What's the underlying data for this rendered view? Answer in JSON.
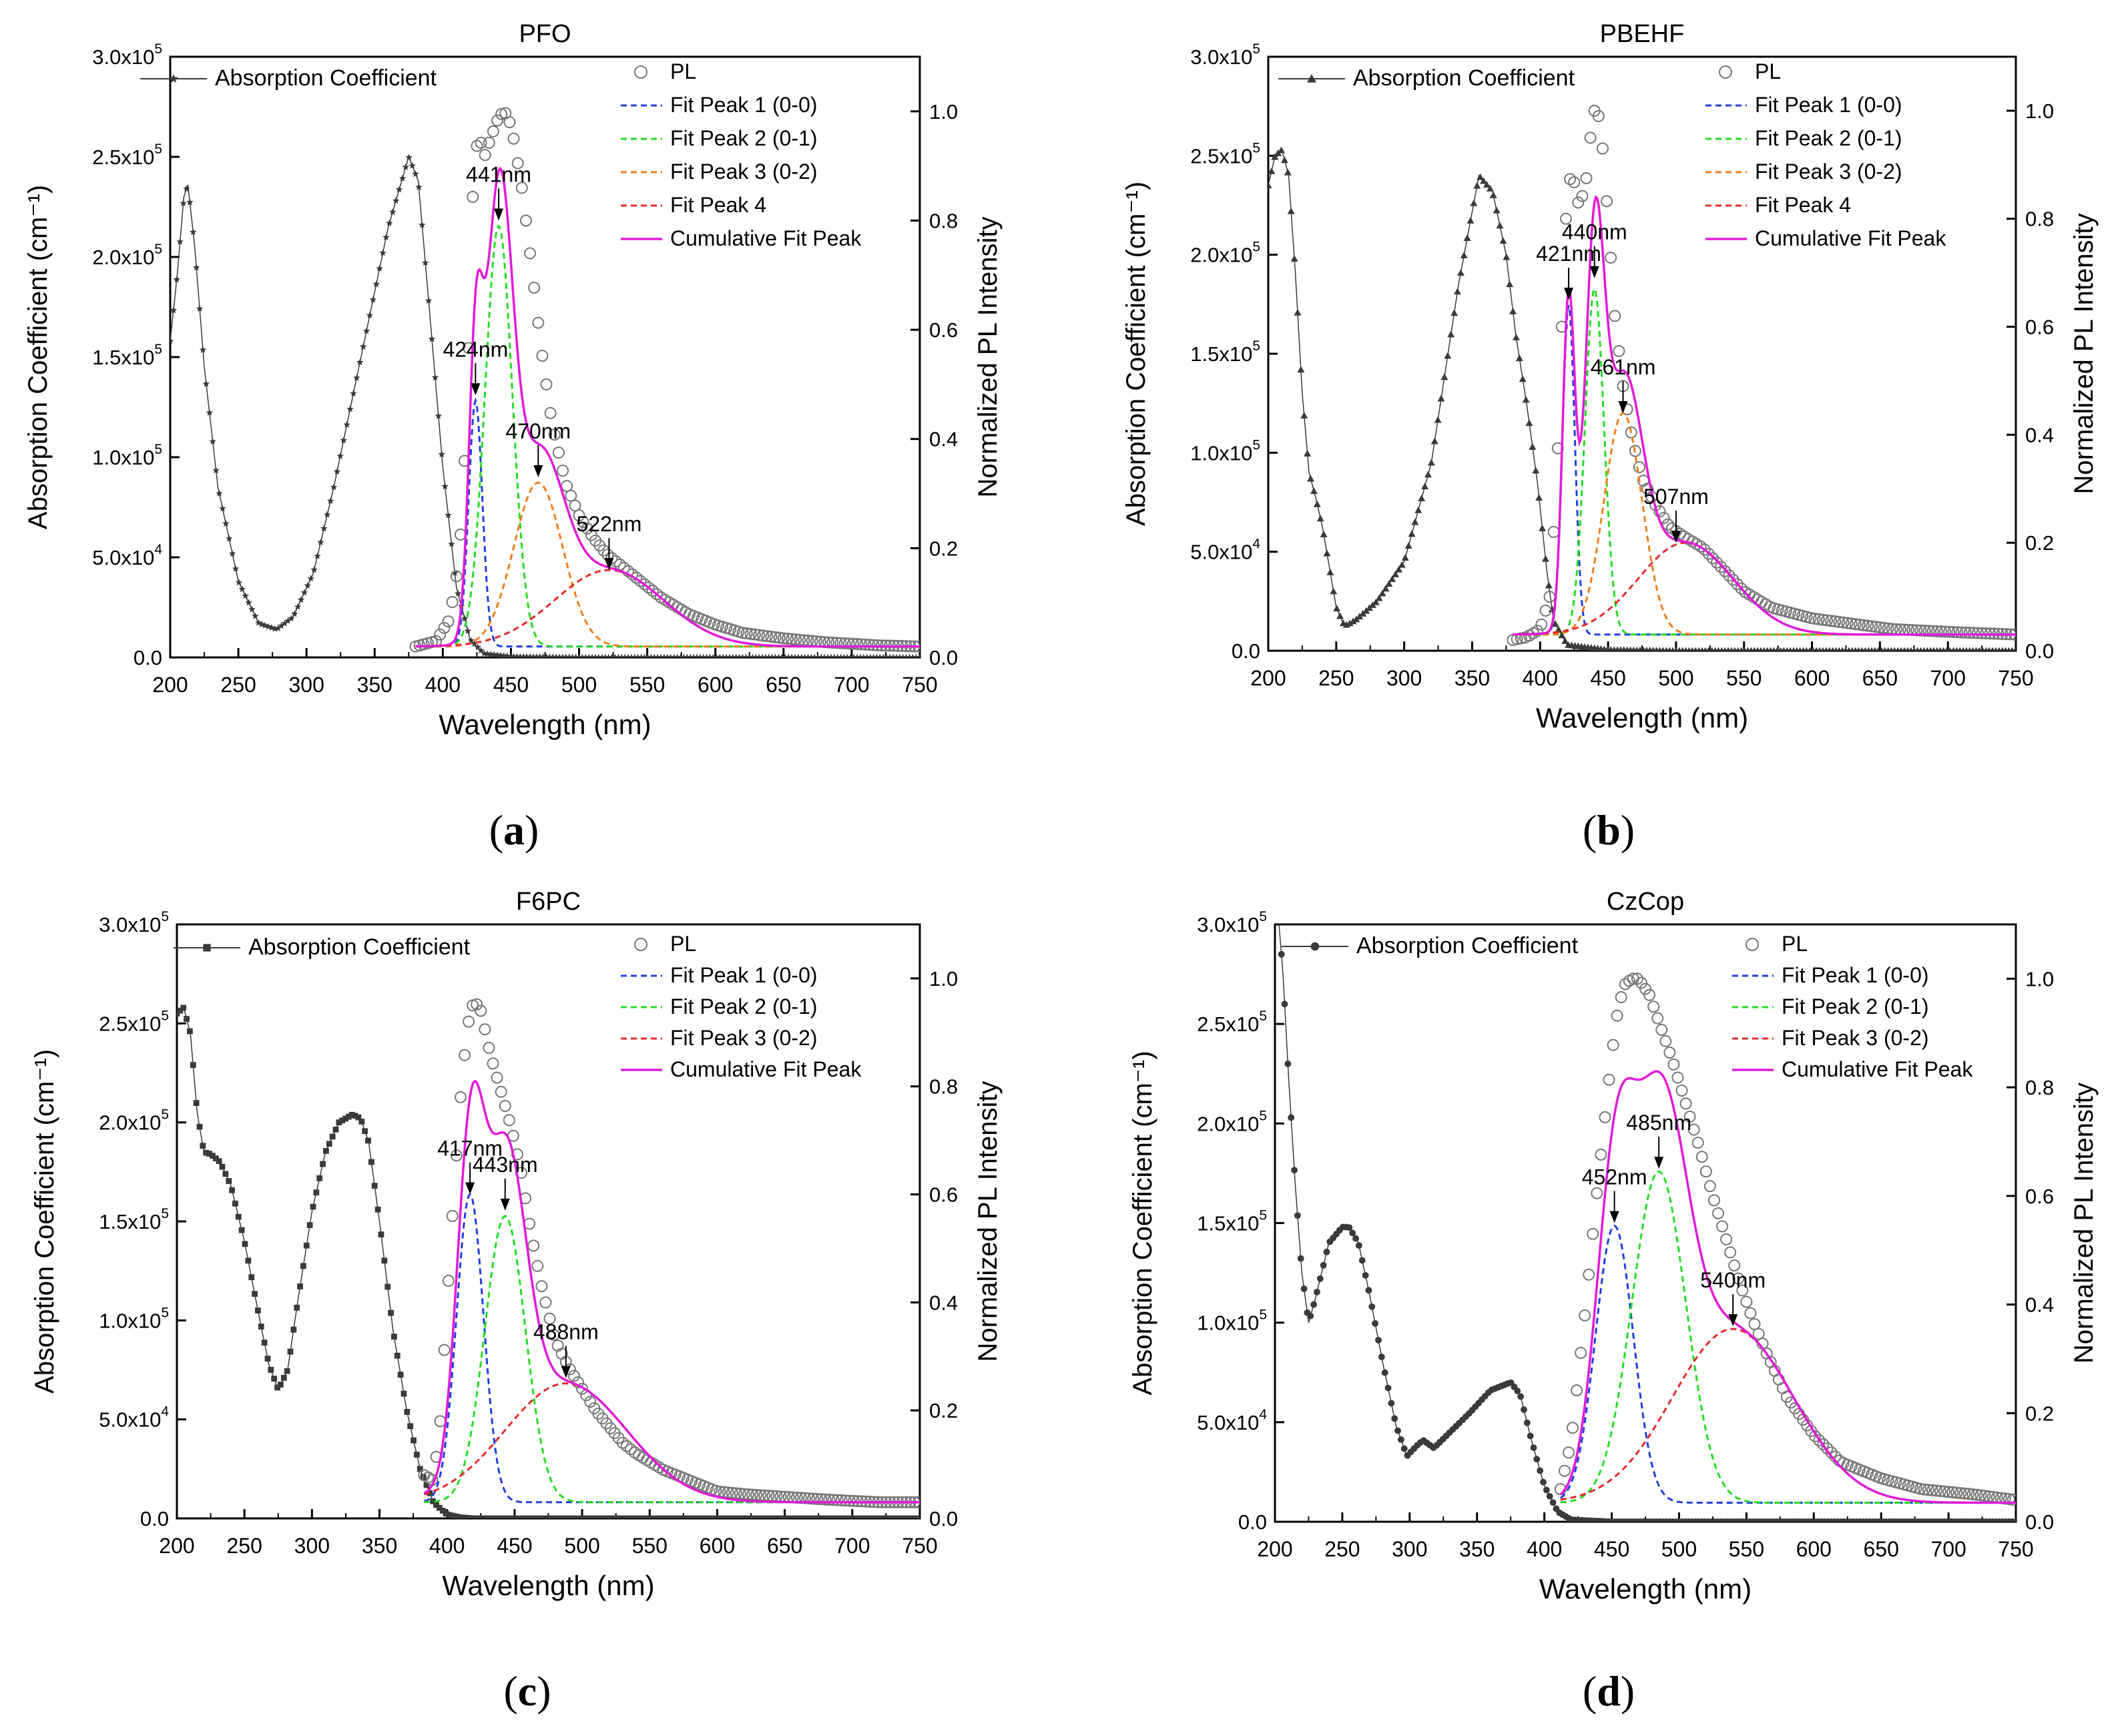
{
  "colors": {
    "absorption": "#3a3a3a",
    "pl_marker": "#777777",
    "fit_blue": "#1f3fe0",
    "fit_green": "#22dd22",
    "fit_orange": "#f07f1a",
    "fit_red": "#e52a2a",
    "cumulative": "#e21ad8",
    "annotation": "#000000"
  },
  "chart_data": [
    {
      "id": "a",
      "panel_label": "a",
      "type": "line",
      "title": "PFO",
      "xlabel": "Wavelength (nm)",
      "ylabel": "Absorption Coefficient (cm⁻¹)",
      "y2label": "Normalized PL Intensity",
      "xlim": [
        200,
        750
      ],
      "ylim": [
        0,
        300000
      ],
      "y2lim": [
        0,
        1.1
      ],
      "xticks": [
        "200",
        "250",
        "300",
        "350",
        "400",
        "450",
        "500",
        "550",
        "600",
        "650",
        "700",
        "750"
      ],
      "yticks": [
        [
          "0.0",
          ""
        ],
        [
          "5.0x10",
          "4"
        ],
        [
          "1.0x10",
          "5"
        ],
        [
          "1.5x10",
          "5"
        ],
        [
          "2.0x10",
          "5"
        ],
        [
          "2.5x10",
          "5"
        ],
        [
          "3.0x10",
          "5"
        ]
      ],
      "y2ticks": [
        "0.0",
        "0.2",
        "0.4",
        "0.6",
        "0.8",
        "1.0"
      ],
      "absorption_marker": "star",
      "absorption": {
        "name": "Absorption Coefficient",
        "x": [
          200,
          205,
          210,
          213,
          218,
          225,
          235,
          250,
          265,
          278,
          290,
          305,
          320,
          340,
          360,
          375,
          382,
          390,
          400,
          410,
          420,
          430,
          450,
          500,
          600,
          750
        ],
        "y": [
          158000,
          190000,
          230000,
          236000,
          205000,
          145000,
          85000,
          38000,
          17000,
          14000,
          20000,
          42000,
          85000,
          150000,
          215000,
          250000,
          238000,
          175000,
          95000,
          35000,
          9000,
          2000,
          400,
          0,
          0,
          0
        ]
      },
      "pl": {
        "name": "PL",
        "x": [
          380,
          395,
          405,
          412,
          418,
          421,
          424,
          427,
          431,
          435,
          441,
          445,
          448,
          452,
          458,
          465,
          472,
          480,
          490,
          500,
          510,
          520,
          530,
          540,
          560,
          580,
          600,
          620,
          650,
          680,
          720,
          750
        ],
        "y": [
          0.02,
          0.03,
          0.07,
          0.18,
          0.45,
          0.8,
          0.93,
          0.95,
          0.92,
          0.95,
          0.99,
          1.0,
          0.99,
          0.95,
          0.86,
          0.72,
          0.57,
          0.43,
          0.32,
          0.26,
          0.22,
          0.19,
          0.17,
          0.15,
          0.11,
          0.08,
          0.06,
          0.045,
          0.035,
          0.028,
          0.022,
          0.02
        ]
      },
      "fits": [
        {
          "name": "Fit Peak 1 (0-0)",
          "center": 424,
          "amp": 0.45,
          "sigma": 5,
          "baseline": 0.02,
          "x0": 380,
          "x1": 750,
          "color": "#1f3fe0"
        },
        {
          "name": "Fit Peak 2 (0-1)",
          "center": 441,
          "amp": 0.77,
          "sigma": 10,
          "baseline": 0.02,
          "x0": 380,
          "x1": 750,
          "color": "#22dd22"
        },
        {
          "name": "Fit Peak 3 (0-2)",
          "center": 470,
          "amp": 0.3,
          "sigma": 18,
          "baseline": 0.02,
          "x0": 380,
          "x1": 750,
          "color": "#f07f1a"
        },
        {
          "name": "Fit Peak 4",
          "center": 522,
          "amp": 0.14,
          "sigma": 40,
          "baseline": 0.02,
          "x0": 380,
          "x1": 750,
          "color": "#e52a2a"
        }
      ],
      "cumulative": {
        "name": "Cumulative Fit Peak"
      },
      "annotations": [
        {
          "text": "441nm",
          "x": 441,
          "y": 0.8
        },
        {
          "text": "424nm",
          "x": 424,
          "y": 0.48
        },
        {
          "text": "470nm",
          "x": 470,
          "y": 0.33
        },
        {
          "text": "522nm",
          "x": 522,
          "y": 0.16
        }
      ]
    },
    {
      "id": "b",
      "panel_label": "b",
      "type": "line",
      "title": "PBEHF",
      "xlabel": "Wavelength (nm)",
      "ylabel": "Absorption Coefficient (cm⁻¹)",
      "y2label": "Normalized PL Intensity",
      "xlim": [
        200,
        750
      ],
      "ylim": [
        0,
        300000
      ],
      "y2lim": [
        0,
        1.1
      ],
      "xticks": [
        "200",
        "250",
        "300",
        "350",
        "400",
        "450",
        "500",
        "550",
        "600",
        "650",
        "700",
        "750"
      ],
      "yticks": [
        [
          "0.0",
          ""
        ],
        [
          "5.0x10",
          "4"
        ],
        [
          "1.0x10",
          "5"
        ],
        [
          "1.5x10",
          "5"
        ],
        [
          "2.0x10",
          "5"
        ],
        [
          "2.5x10",
          "5"
        ],
        [
          "3.0x10",
          "5"
        ]
      ],
      "y2ticks": [
        "0.0",
        "0.2",
        "0.4",
        "0.6",
        "0.8",
        "1.0"
      ],
      "absorption_marker": "triangle",
      "absorption": {
        "name": "Absorption Coefficient",
        "x": [
          200,
          205,
          210,
          215,
          220,
          225,
          230,
          235,
          240,
          245,
          250,
          255,
          258,
          265,
          280,
          300,
          320,
          340,
          355,
          365,
          375,
          382,
          390,
          398,
          405,
          410,
          420,
          450,
          500,
          600,
          750
        ],
        "y": [
          235000,
          250000,
          253000,
          240000,
          190000,
          130000,
          90000,
          77000,
          62000,
          42000,
          22000,
          14000,
          13000,
          16000,
          25000,
          45000,
          95000,
          185000,
          240000,
          232000,
          200000,
          160000,
          125000,
          85000,
          40000,
          15000,
          3000,
          500,
          0,
          0,
          0
        ]
      },
      "pl": {
        "name": "PL",
        "x": [
          380,
          390,
          400,
          407,
          412,
          416,
          419,
          421,
          424,
          428,
          433,
          437,
          440,
          443,
          446,
          450,
          455,
          461,
          468,
          475,
          485,
          495,
          507,
          520,
          535,
          550,
          570,
          600,
          630,
          660,
          700,
          750
        ],
        "y": [
          0.02,
          0.025,
          0.04,
          0.1,
          0.3,
          0.6,
          0.8,
          0.87,
          0.88,
          0.83,
          0.85,
          0.95,
          1.0,
          0.99,
          0.93,
          0.8,
          0.62,
          0.49,
          0.39,
          0.32,
          0.27,
          0.23,
          0.21,
          0.19,
          0.15,
          0.11,
          0.08,
          0.06,
          0.05,
          0.04,
          0.035,
          0.03
        ]
      },
      "fits": [
        {
          "name": "Fit Peak 1 (0-0)",
          "center": 421,
          "amp": 0.61,
          "sigma": 4.5,
          "baseline": 0.03,
          "x0": 380,
          "x1": 750,
          "color": "#1f3fe0"
        },
        {
          "name": "Fit Peak 2 (0-1)",
          "center": 440,
          "amp": 0.64,
          "sigma": 7,
          "baseline": 0.03,
          "x0": 380,
          "x1": 750,
          "color": "#22dd22"
        },
        {
          "name": "Fit Peak 3 (0-2)",
          "center": 461,
          "amp": 0.41,
          "sigma": 14,
          "baseline": 0.03,
          "x0": 380,
          "x1": 750,
          "color": "#f07f1a"
        },
        {
          "name": "Fit Peak 4",
          "center": 507,
          "amp": 0.17,
          "sigma": 35,
          "baseline": 0.03,
          "x0": 380,
          "x1": 750,
          "color": "#e52a2a"
        }
      ],
      "cumulative": {
        "name": "Cumulative Fit Peak"
      },
      "annotations": [
        {
          "text": "421nm",
          "x": 421,
          "y": 0.65
        },
        {
          "text": "440nm",
          "x": 440,
          "y": 0.69
        },
        {
          "text": "461nm",
          "x": 461,
          "y": 0.44
        },
        {
          "text": "507nm",
          "x": 500,
          "y": 0.2
        }
      ]
    },
    {
      "id": "c",
      "panel_label": "c",
      "type": "line",
      "title": "F6PC",
      "xlabel": "Wavelength (nm)",
      "ylabel": "Absorption Coefficient (cm⁻¹)",
      "y2label": "Normalized PL Intensity",
      "xlim": [
        200,
        750
      ],
      "ylim": [
        0,
        300000
      ],
      "y2lim": [
        0,
        1.1
      ],
      "xticks": [
        "200",
        "250",
        "300",
        "350",
        "400",
        "450",
        "500",
        "550",
        "600",
        "650",
        "700",
        "750"
      ],
      "yticks": [
        [
          "0.0",
          ""
        ],
        [
          "5.0x10",
          "4"
        ],
        [
          "1.0x10",
          "5"
        ],
        [
          "1.5x10",
          "5"
        ],
        [
          "2.0x10",
          "5"
        ],
        [
          "2.5x10",
          "5"
        ],
        [
          "3.0x10",
          "5"
        ]
      ],
      "y2ticks": [
        "0.0",
        "0.2",
        "0.4",
        "0.6",
        "0.8",
        "1.0"
      ],
      "absorption_marker": "square",
      "absorption": {
        "name": "Absorption Coefficient",
        "x": [
          200,
          205,
          210,
          215,
          220,
          225,
          232,
          240,
          250,
          260,
          268,
          275,
          282,
          290,
          300,
          310,
          320,
          330,
          336,
          342,
          350,
          360,
          370,
          380,
          390,
          400,
          410,
          420,
          450,
          500,
          600,
          750
        ],
        "y": [
          255000,
          258000,
          245000,
          205000,
          185000,
          184000,
          180000,
          168000,
          140000,
          105000,
          78000,
          65000,
          75000,
          112000,
          155000,
          185000,
          200000,
          204000,
          202000,
          190000,
          150000,
          95000,
          55000,
          25000,
          8000,
          2000,
          500,
          0,
          0,
          0,
          0,
          0
        ]
      },
      "pl": {
        "name": "PL",
        "x": [
          383,
          390,
          395,
          400,
          405,
          410,
          415,
          420,
          425,
          432,
          440,
          448,
          455,
          462,
          470,
          480,
          490,
          500,
          510,
          520,
          530,
          540,
          560,
          580,
          600,
          620,
          650,
          680,
          720,
          750
        ],
        "y": [
          0.08,
          0.07,
          0.18,
          0.4,
          0.6,
          0.78,
          0.91,
          0.96,
          0.94,
          0.86,
          0.79,
          0.72,
          0.64,
          0.53,
          0.43,
          0.33,
          0.28,
          0.24,
          0.2,
          0.17,
          0.14,
          0.12,
          0.09,
          0.07,
          0.05,
          0.045,
          0.04,
          0.035,
          0.03,
          0.03
        ]
      },
      "fits": [
        {
          "name": "Fit Peak 1 (0-0)",
          "center": 417,
          "amp": 0.57,
          "sigma": 10,
          "baseline": 0.03,
          "x0": 383,
          "x1": 750,
          "color": "#1f3fe0"
        },
        {
          "name": "Fit Peak 2 (0-1)",
          "center": 443,
          "amp": 0.53,
          "sigma": 15,
          "baseline": 0.03,
          "x0": 383,
          "x1": 750,
          "color": "#22dd22"
        },
        {
          "name": "Fit Peak 3 (0-2)",
          "center": 488,
          "amp": 0.22,
          "sigma": 45,
          "baseline": 0.03,
          "x0": 383,
          "x1": 750,
          "color": "#e52a2a"
        }
      ],
      "cumulative": {
        "name": "Cumulative Fit Peak"
      },
      "annotations": [
        {
          "text": "417nm",
          "x": 417,
          "y": 0.6
        },
        {
          "text": "443nm",
          "x": 443,
          "y": 0.57
        },
        {
          "text": "488nm",
          "x": 488,
          "y": 0.26
        }
      ]
    },
    {
      "id": "d",
      "panel_label": "d",
      "type": "line",
      "title": "CzCop",
      "xlabel": "Wavelength (nm)",
      "ylabel": "Absorption Coefficient (cm⁻¹)",
      "y2label": "Normalized PL Intensity",
      "xlim": [
        200,
        750
      ],
      "ylim": [
        0,
        300000
      ],
      "y2lim": [
        0,
        1.1
      ],
      "xticks": [
        "200",
        "250",
        "300",
        "350",
        "400",
        "450",
        "500",
        "550",
        "600",
        "650",
        "700",
        "750"
      ],
      "yticks": [
        [
          "0.0",
          ""
        ],
        [
          "5.0x10",
          "4"
        ],
        [
          "1.0x10",
          "5"
        ],
        [
          "1.5x10",
          "5"
        ],
        [
          "2.0x10",
          "5"
        ],
        [
          "2.5x10",
          "5"
        ],
        [
          "3.0x10",
          "5"
        ]
      ],
      "y2ticks": [
        "0.0",
        "0.2",
        "0.4",
        "0.6",
        "0.8",
        "1.0"
      ],
      "absorption_marker": "circle",
      "absorption": {
        "name": "Absorption Coefficient",
        "x": [
          203,
          206,
          210,
          215,
          220,
          225,
          230,
          240,
          250,
          255,
          262,
          270,
          280,
          290,
          298,
          305,
          310,
          318,
          330,
          345,
          360,
          375,
          382,
          390,
          400,
          410,
          420,
          450,
          500,
          600,
          750
        ],
        "y": [
          300000,
          275000,
          225000,
          170000,
          125000,
          100000,
          112000,
          140000,
          148000,
          148000,
          140000,
          115000,
          80000,
          48000,
          33000,
          38000,
          41000,
          37000,
          45000,
          55000,
          66000,
          70000,
          64000,
          42000,
          18000,
          5000,
          1000,
          0,
          0,
          0,
          0
        ]
      },
      "pl": {
        "name": "PL",
        "x": [
          412,
          420,
          430,
          440,
          450,
          455,
          460,
          465,
          470,
          478,
          485,
          495,
          505,
          515,
          525,
          535,
          545,
          555,
          565,
          580,
          600,
          620,
          650,
          680,
          720,
          750
        ],
        "y": [
          0.06,
          0.15,
          0.38,
          0.63,
          0.86,
          0.95,
          0.99,
          1.0,
          1.0,
          0.97,
          0.92,
          0.85,
          0.77,
          0.69,
          0.6,
          0.52,
          0.44,
          0.37,
          0.31,
          0.23,
          0.16,
          0.11,
          0.08,
          0.06,
          0.05,
          0.04
        ]
      },
      "fits": [
        {
          "name": "Fit Peak 1 (0-0)",
          "center": 452,
          "amp": 0.51,
          "sigma": 14,
          "baseline": 0.035,
          "x0": 412,
          "x1": 750,
          "color": "#1f3fe0"
        },
        {
          "name": "Fit Peak 2 (0-1)",
          "center": 485,
          "amp": 0.61,
          "sigma": 20,
          "baseline": 0.035,
          "x0": 412,
          "x1": 750,
          "color": "#22dd22"
        },
        {
          "name": "Fit Peak 3 (0-2)",
          "center": 540,
          "amp": 0.32,
          "sigma": 45,
          "baseline": 0.035,
          "x0": 412,
          "x1": 750,
          "color": "#e52a2a"
        }
      ],
      "cumulative": {
        "name": "Cumulative Fit Peak"
      },
      "annotations": [
        {
          "text": "452nm",
          "x": 452,
          "y": 0.55
        },
        {
          "text": "485nm",
          "x": 485,
          "y": 0.65
        },
        {
          "text": "540nm",
          "x": 540,
          "y": 0.36
        }
      ]
    }
  ]
}
